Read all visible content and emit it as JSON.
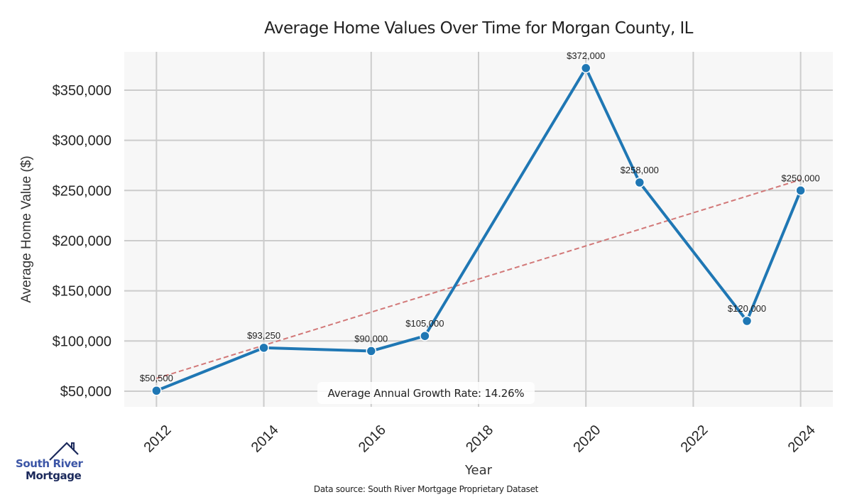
{
  "chart_data": {
    "type": "line",
    "title": "Average Home Values Over Time for Morgan County, IL",
    "xlabel": "Year",
    "ylabel": "Average Home Value ($)",
    "x": [
      2012,
      2014,
      2016,
      2017,
      2020,
      2021,
      2023,
      2024
    ],
    "series": [
      {
        "name": "Average Home Value",
        "values": [
          50500,
          93250,
          90000,
          105000,
          372000,
          258000,
          120000,
          250000
        ],
        "labels": [
          "$50,500",
          "$93,250",
          "$90,000",
          "$105,000",
          "$372,000",
          "$258,000",
          "$120,000",
          "$250,000"
        ],
        "color": "#1f77b4"
      },
      {
        "name": "Trend",
        "style": "dashed",
        "x": [
          2012,
          2024
        ],
        "values": [
          62700,
          260800
        ],
        "color": "#d27878"
      }
    ],
    "xticks": [
      2012,
      2014,
      2016,
      2018,
      2020,
      2022,
      2024
    ],
    "xtick_labels": [
      "2012",
      "2014",
      "2016",
      "2018",
      "2020",
      "2022",
      "2024"
    ],
    "yticks": [
      50000,
      100000,
      150000,
      200000,
      250000,
      300000,
      350000
    ],
    "ytick_labels": [
      "$50,000",
      "$100,000",
      "$150,000",
      "$200,000",
      "$250,000",
      "$300,000",
      "$350,000"
    ],
    "xlim": [
      2011.4,
      2024.6
    ],
    "ylim": [
      34400,
      388200
    ],
    "grid": true,
    "annotation": "Average Annual Growth Rate: 14.26%",
    "background": "#f7f7f7",
    "grid_color": "#cccccc"
  },
  "footer": {
    "source": "Data source: South River Mortgage Proprietary Dataset"
  },
  "logo": {
    "line1": "South River",
    "line2": "Mortgage",
    "color_primary": "#3b55a6",
    "color_dark": "#1c2a5c"
  }
}
